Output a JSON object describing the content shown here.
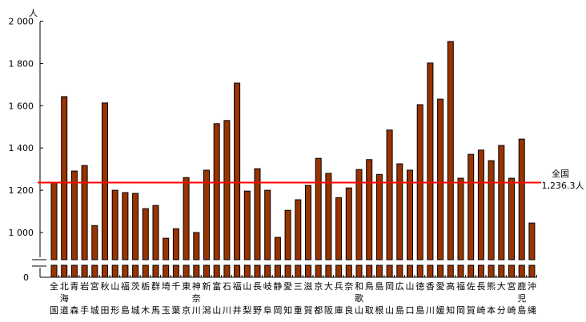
{
  "chart_data": {
    "type": "bar",
    "ylabel": "人",
    "ylim": [
      0,
      2000
    ],
    "broken_axis": true,
    "yticks": [
      {
        "value": 2000,
        "label": "2 000"
      },
      {
        "value": 1800,
        "label": "1 800"
      },
      {
        "value": 1600,
        "label": "1 600"
      },
      {
        "value": 1400,
        "label": "1 400"
      },
      {
        "value": 1200,
        "label": "1 200"
      },
      {
        "value": 1000,
        "label": "1 000"
      },
      {
        "value": 0,
        "label": "0"
      }
    ],
    "categories": [
      "全国",
      "北海道",
      "青森",
      "岩手",
      "宮城",
      "秋田",
      "山形",
      "福島",
      "茨城",
      "栃木",
      "群馬",
      "埼玉",
      "千葉",
      "東京",
      "神奈川",
      "新潟",
      "富山",
      "石川",
      "福井",
      "山梨",
      "長野",
      "岐阜",
      "静岡",
      "愛知",
      "三重",
      "滋賀",
      "京都",
      "大阪",
      "兵庫",
      "奈良",
      "和歌山",
      "鳥取",
      "島根",
      "岡山",
      "広島",
      "山口",
      "徳島",
      "香川",
      "愛媛",
      "高知",
      "福岡",
      "佐賀",
      "長崎",
      "熊本",
      "大分",
      "宮崎",
      "鹿児島",
      "沖縄"
    ],
    "values": [
      1236.3,
      1643,
      1291,
      1317,
      1033,
      1613,
      1200,
      1189,
      1185,
      1113,
      1128,
      973,
      1018,
      1260,
      1000,
      1295,
      1515,
      1530,
      1707,
      1196,
      1302,
      1200,
      977,
      1105,
      1155,
      1223,
      1351,
      1280,
      1165,
      1211,
      1298,
      1345,
      1275,
      1485,
      1325,
      1295,
      1605,
      1802,
      1631,
      1904,
      1257,
      1370,
      1390,
      1340,
      1412,
      1257,
      1442,
      1045
    ],
    "reference_line": {
      "value": 1236.3,
      "label_line1": "全国",
      "label_line2": "1,236.3人",
      "color": "#ff0000"
    },
    "bar_color": "#993300",
    "grid": false
  }
}
